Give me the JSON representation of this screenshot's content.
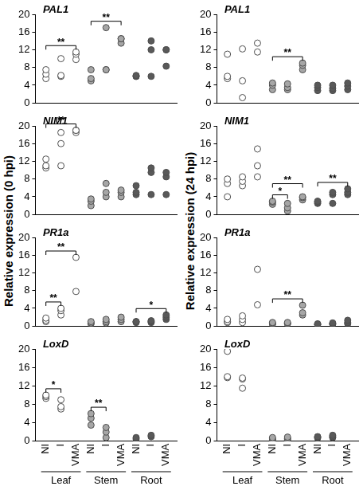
{
  "chart_data": [
    {
      "type": "scatter",
      "title": "PAL1",
      "ylabel": "Relative expression (0 hpi)",
      "categories": [
        "NI",
        "I",
        "VMA"
      ],
      "ylim": [
        0,
        20
      ],
      "yticks": [
        0,
        4,
        8,
        12,
        16,
        20
      ],
      "grid": false,
      "tick_labels": "y",
      "series": [
        {
          "name": "Leaf",
          "color": "#ffffff",
          "values": [
            [
              5.5,
              6.5,
              7.5
            ],
            [
              6,
              6.2,
              10
            ],
            [
              9.8,
              11,
              11.5
            ]
          ]
        },
        {
          "name": "Stem",
          "color": "#a6a6a6",
          "values": [
            [
              5,
              5.5,
              7.5
            ],
            [
              7.5,
              7.5,
              17
            ],
            [
              13.5,
              14.5,
              14.5
            ]
          ]
        },
        {
          "name": "Root",
          "color": "#595959",
          "values": [
            [
              6,
              6,
              6.2
            ],
            [
              6,
              12,
              14
            ],
            [
              8.3,
              12,
              12
            ]
          ]
        }
      ],
      "brackets": [
        {
          "series": "Leaf",
          "from": "NI",
          "to": "VMA",
          "label": "**"
        },
        {
          "series": "Stem",
          "from": "NI",
          "to": "VMA",
          "label": "**"
        }
      ]
    },
    {
      "type": "scatter",
      "title": "NIM1",
      "categories": [
        "NI",
        "I",
        "VMA"
      ],
      "ylim": [
        0,
        20
      ],
      "yticks": [
        0,
        4,
        8,
        12,
        16,
        20
      ],
      "grid": false,
      "tick_labels": "y",
      "series": [
        {
          "name": "Leaf",
          "color": "#ffffff",
          "values": [
            [
              10.5,
              11,
              12.5
            ],
            [
              11,
              16,
              18.5
            ],
            [
              18.5,
              19,
              19
            ]
          ]
        },
        {
          "name": "Stem",
          "color": "#a6a6a6",
          "values": [
            [
              2,
              3,
              3.5
            ],
            [
              4,
              5,
              7
            ],
            [
              4,
              5,
              5.5
            ]
          ]
        },
        {
          "name": "Root",
          "color": "#595959",
          "values": [
            [
              4.5,
              5,
              6.5
            ],
            [
              4.5,
              9.5,
              10.5
            ],
            [
              4.5,
              8.5,
              9.5
            ]
          ]
        }
      ],
      "brackets": [
        {
          "series": "Leaf",
          "from": "NI",
          "to": "VMA",
          "label": "**"
        }
      ]
    },
    {
      "type": "scatter",
      "title": "PR1a",
      "categories": [
        "NI",
        "I",
        "VMA"
      ],
      "ylim": [
        0,
        20
      ],
      "yticks": [
        0,
        4,
        8,
        12,
        16,
        20
      ],
      "grid": false,
      "tick_labels": "y",
      "series": [
        {
          "name": "Leaf",
          "color": "#ffffff",
          "values": [
            [
              1,
              1.3,
              1.8
            ],
            [
              2.5,
              3.5,
              4
            ],
            [
              7.8,
              15.5
            ]
          ]
        },
        {
          "name": "Stem",
          "color": "#a6a6a6",
          "values": [
            [
              0.5,
              0.7,
              1
            ],
            [
              0.7,
              1,
              1.5
            ],
            [
              1,
              1.5,
              2
            ]
          ]
        },
        {
          "name": "Root",
          "color": "#595959",
          "values": [
            [
              0.8,
              1,
              1
            ],
            [
              0.8,
              1,
              1.2
            ],
            [
              1.5,
              2,
              2.5
            ]
          ]
        }
      ],
      "brackets": [
        {
          "series": "Leaf",
          "from": "NI",
          "to": "I",
          "label": "**"
        },
        {
          "series": "Leaf",
          "from": "NI",
          "to": "VMA",
          "label": "**"
        },
        {
          "series": "Root",
          "from": "NI",
          "to": "VMA",
          "label": "*"
        }
      ]
    },
    {
      "type": "scatter",
      "title": "LoxD",
      "categories": [
        "NI",
        "I",
        "VMA"
      ],
      "ylim": [
        0,
        20
      ],
      "yticks": [
        0,
        4,
        8,
        12,
        16,
        20
      ],
      "grid": false,
      "series": [
        {
          "name": "Leaf",
          "color": "#ffffff",
          "values": [
            [
              9.3,
              9.7,
              10
            ],
            [
              7,
              7.5,
              9
            ],
            []
          ]
        },
        {
          "name": "Stem",
          "color": "#a6a6a6",
          "values": [
            [
              3.5,
              5,
              6
            ],
            [
              0.8,
              2,
              3
            ],
            []
          ]
        },
        {
          "name": "Root",
          "color": "#595959",
          "values": [
            [
              0.5,
              0.8
            ],
            [
              1,
              1.3
            ],
            []
          ]
        }
      ],
      "brackets": [
        {
          "series": "Leaf",
          "from": "NI",
          "to": "I",
          "label": "*"
        },
        {
          "series": "Stem",
          "from": "NI",
          "to": "I",
          "label": "**"
        }
      ]
    },
    {
      "type": "scatter",
      "title": "PAL1",
      "ylabel": "Relative expression (24 hpi)",
      "categories": [
        "NI",
        "I",
        "VMA"
      ],
      "ylim": [
        0,
        20
      ],
      "yticks": [
        0,
        4,
        8,
        12,
        16,
        20
      ],
      "grid": false,
      "tick_labels": "y",
      "series": [
        {
          "name": "Leaf",
          "color": "#ffffff",
          "values": [
            [
              5.5,
              6,
              11
            ],
            [
              1.2,
              5,
              12.2
            ],
            [
              11.5,
              13.5
            ]
          ]
        },
        {
          "name": "Stem",
          "color": "#a6a6a6",
          "values": [
            [
              3,
              4,
              4.5
            ],
            [
              3,
              3.5,
              4.3
            ],
            [
              7.5,
              8.5,
              9
            ]
          ]
        },
        {
          "name": "Root",
          "color": "#595959",
          "values": [
            [
              2.8,
              3.5,
              4
            ],
            [
              2.8,
              3.3,
              4
            ],
            [
              3,
              3.8,
              4.5
            ]
          ]
        }
      ],
      "brackets": [
        {
          "series": "Stem",
          "from": "NI",
          "to": "VMA",
          "label": "**"
        }
      ]
    },
    {
      "type": "scatter",
      "title": "NIM1",
      "categories": [
        "NI",
        "I",
        "VMA"
      ],
      "ylim": [
        0,
        20
      ],
      "yticks": [
        0,
        4,
        8,
        12,
        16,
        20
      ],
      "grid": false,
      "tick_labels": "y",
      "series": [
        {
          "name": "Leaf",
          "color": "#ffffff",
          "values": [
            [
              4,
              7,
              8
            ],
            [
              6.5,
              7.5,
              8.5
            ],
            [
              8.5,
              11,
              14.8
            ]
          ]
        },
        {
          "name": "Stem",
          "color": "#a6a6a6",
          "values": [
            [
              2.3,
              2.8,
              3
            ],
            [
              0.8,
              1.5,
              2.5
            ],
            [
              3.3,
              3.8,
              4
            ]
          ]
        },
        {
          "name": "Root",
          "color": "#595959",
          "values": [
            [
              2.5,
              2.8,
              3
            ],
            [
              2.5,
              4.5,
              5
            ],
            [
              4.5,
              5,
              5.8
            ]
          ]
        }
      ],
      "brackets": [
        {
          "series": "Stem",
          "from": "NI",
          "to": "I",
          "label": "*"
        },
        {
          "series": "Stem",
          "from": "NI",
          "to": "VMA",
          "label": "**"
        },
        {
          "series": "Root",
          "from": "NI",
          "to": "VMA",
          "label": "**"
        }
      ]
    },
    {
      "type": "scatter",
      "title": "PR1a",
      "categories": [
        "NI",
        "I",
        "VMA"
      ],
      "ylim": [
        0,
        20
      ],
      "yticks": [
        0,
        4,
        8,
        12,
        16,
        20
      ],
      "grid": false,
      "tick_labels": "y",
      "series": [
        {
          "name": "Leaf",
          "color": "#ffffff",
          "values": [
            [
              0.8,
              1,
              1.5
            ],
            [
              0.8,
              1.5,
              2.3
            ],
            [
              4.8,
              12.8
            ]
          ]
        },
        {
          "name": "Stem",
          "color": "#a6a6a6",
          "values": [
            [
              0.4,
              0.6,
              0.8
            ],
            [
              0.5,
              0.6,
              0.8
            ],
            [
              2.5,
              3,
              4.7
            ]
          ]
        },
        {
          "name": "Root",
          "color": "#595959",
          "values": [
            [
              0.3,
              0.4,
              0.5
            ],
            [
              0.4,
              0.5,
              0.7
            ],
            [
              0.5,
              0.8,
              1.3
            ]
          ]
        }
      ],
      "brackets": [
        {
          "series": "Stem",
          "from": "NI",
          "to": "VMA",
          "label": "**"
        }
      ]
    },
    {
      "type": "scatter",
      "title": "LoxD",
      "categories": [
        "NI",
        "I",
        "VMA"
      ],
      "ylim": [
        0,
        20
      ],
      "yticks": [
        0,
        4,
        8,
        12,
        16,
        20
      ],
      "grid": false,
      "series": [
        {
          "name": "Leaf",
          "color": "#ffffff",
          "values": [
            [
              13.8,
              14,
              19.5
            ],
            [
              11.5,
              13.5,
              13.7
            ],
            []
          ]
        },
        {
          "name": "Stem",
          "color": "#a6a6a6",
          "values": [
            [
              0.3,
              0.5,
              0.8
            ],
            [
              0.3,
              0.6,
              0.9
            ],
            []
          ]
        },
        {
          "name": "Root",
          "color": "#595959",
          "values": [
            [
              0.7,
              0.9,
              1
            ],
            [
              0.8,
              1,
              1.3
            ],
            []
          ]
        }
      ],
      "brackets": []
    }
  ]
}
